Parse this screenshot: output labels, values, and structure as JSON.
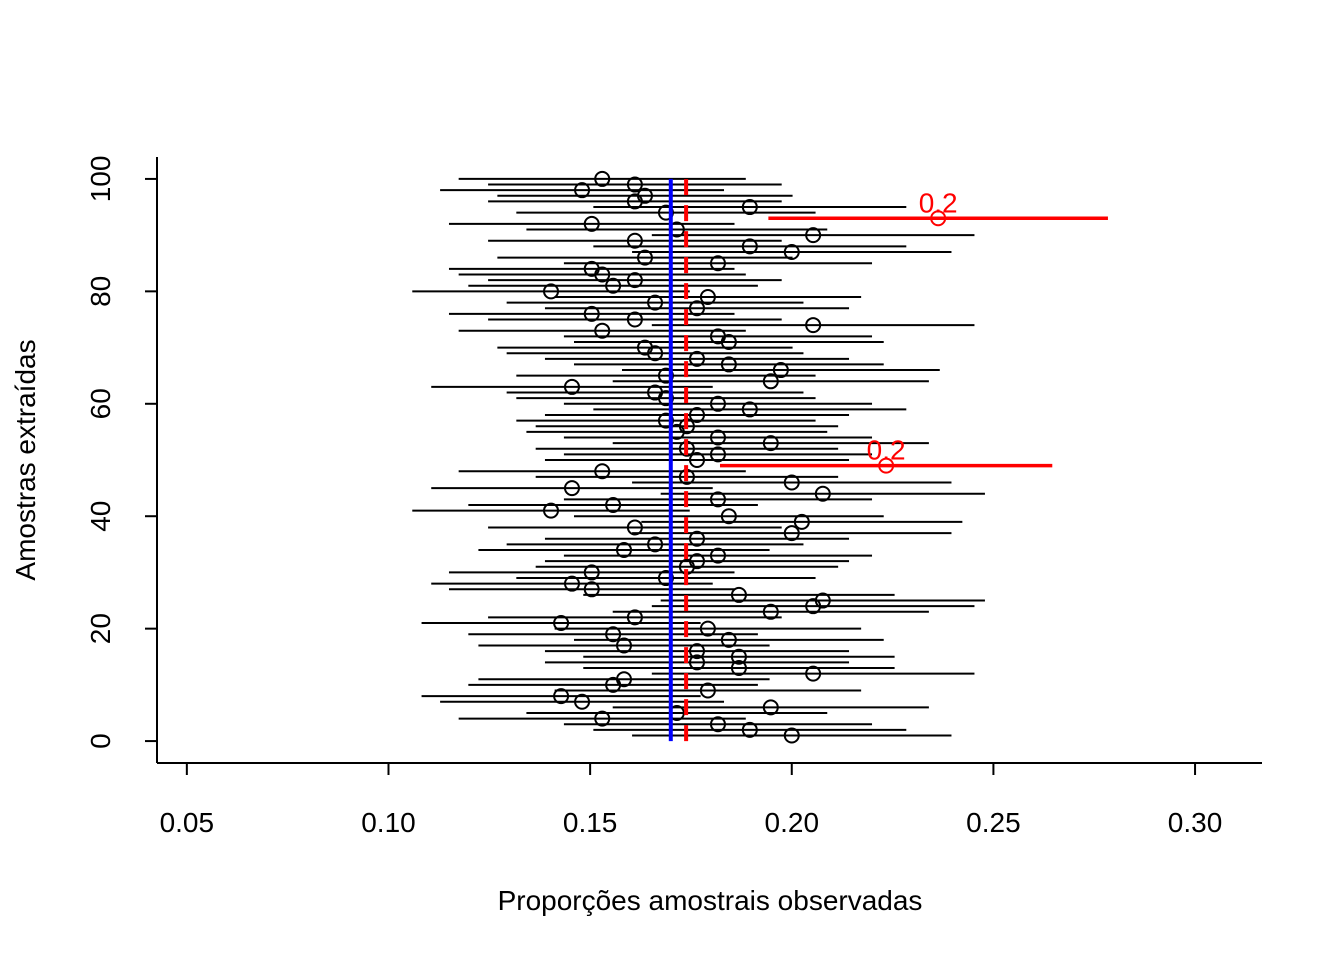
{
  "chart_data": {
    "type": "scatter",
    "xlabel": "Proporções amostrais observadas",
    "ylabel": "Amostras extraídas",
    "color": "black",
    "highlight_color": "red",
    "x": [
      0.2,
      0.1896,
      0.1817,
      0.153,
      0.1715,
      0.1948,
      0.148,
      0.1428,
      0.1792,
      0.1557,
      0.1584,
      0.2053,
      0.1869,
      0.1765,
      0.1869,
      0.1765,
      0.1584,
      0.1844,
      0.1557,
      0.1792,
      0.1428,
      0.1611,
      0.1948,
      0.2053,
      0.2077,
      0.1869,
      0.1504,
      0.1455,
      0.1688,
      0.1504,
      0.174,
      0.1765,
      0.1817,
      0.1584,
      0.1661,
      0.1765,
      0.2,
      0.1611,
      0.2025,
      0.1844,
      0.1403,
      0.1557,
      0.1817,
      0.2077,
      0.1455,
      0.2,
      0.174,
      0.153,
      0.2234,
      0.1765,
      0.1817,
      0.174,
      0.1948,
      0.1817,
      0.1715,
      0.174,
      0.1688,
      0.1765,
      0.1896,
      0.1817,
      0.1688,
      0.1661,
      0.1455,
      0.1948,
      0.1688,
      0.1973,
      0.1844,
      0.1765,
      0.1661,
      0.1636,
      0.1844,
      0.1817,
      0.153,
      0.2053,
      0.1611,
      0.1504,
      0.1765,
      0.1661,
      0.1792,
      0.1403,
      0.1557,
      0.1611,
      0.153,
      0.1504,
      0.1817,
      0.1636,
      0.2,
      0.1896,
      0.1611,
      0.2053,
      0.1715,
      0.1504,
      0.2363,
      0.1688,
      0.1896,
      0.1611,
      0.1636,
      0.148,
      0.1611,
      0.153
    ],
    "y": [
      1,
      2,
      3,
      4,
      5,
      6,
      7,
      8,
      9,
      10,
      11,
      12,
      13,
      14,
      15,
      16,
      17,
      18,
      19,
      20,
      21,
      22,
      23,
      24,
      25,
      26,
      27,
      28,
      29,
      30,
      31,
      32,
      33,
      34,
      35,
      36,
      37,
      38,
      39,
      40,
      41,
      42,
      43,
      44,
      45,
      46,
      47,
      48,
      49,
      50,
      51,
      52,
      53,
      54,
      55,
      56,
      57,
      58,
      59,
      60,
      61,
      62,
      63,
      64,
      65,
      66,
      67,
      68,
      69,
      70,
      71,
      72,
      73,
      74,
      75,
      76,
      77,
      78,
      79,
      80,
      81,
      82,
      83,
      84,
      85,
      86,
      87,
      88,
      89,
      90,
      91,
      92,
      93,
      94,
      95,
      96,
      97,
      98,
      99,
      100
    ],
    "lower": [
      0.1604,
      0.1508,
      0.1435,
      0.1174,
      0.1342,
      0.1556,
      0.1128,
      0.1082,
      0.1412,
      0.1198,
      0.1223,
      0.1653,
      0.1483,
      0.1388,
      0.1483,
      0.1388,
      0.1223,
      0.146,
      0.1198,
      0.1412,
      0.1082,
      0.1247,
      0.1556,
      0.1653,
      0.1675,
      0.1483,
      0.115,
      0.1106,
      0.1317,
      0.115,
      0.1365,
      0.1388,
      0.1435,
      0.1223,
      0.1293,
      0.1388,
      0.1604,
      0.1247,
      0.1627,
      0.146,
      0.1059,
      0.1198,
      0.1435,
      0.1675,
      0.1106,
      0.1604,
      0.1365,
      0.1174,
      0.1822,
      0.1388,
      0.1435,
      0.1365,
      0.1556,
      0.1435,
      0.1342,
      0.1365,
      0.1317,
      0.1388,
      0.1508,
      0.1435,
      0.1317,
      0.1293,
      0.1106,
      0.1556,
      0.1317,
      0.1579,
      0.146,
      0.1388,
      0.1293,
      0.127,
      0.146,
      0.1435,
      0.1174,
      0.1653,
      0.1247,
      0.115,
      0.1388,
      0.1293,
      0.1412,
      0.1059,
      0.1198,
      0.1247,
      0.1174,
      0.115,
      0.1435,
      0.127,
      0.1604,
      0.1508,
      0.1247,
      0.1653,
      0.1342,
      0.115,
      0.1942,
      0.1317,
      0.1508,
      0.1247,
      0.127,
      0.1128,
      0.1247,
      0.1174
    ],
    "upper": [
      0.2396,
      0.2284,
      0.2199,
      0.1886,
      0.2088,
      0.234,
      0.1832,
      0.1774,
      0.2172,
      0.1916,
      0.1945,
      0.2453,
      0.2255,
      0.2142,
      0.2255,
      0.2142,
      0.1945,
      0.2228,
      0.1916,
      0.2172,
      0.1774,
      0.1975,
      0.234,
      0.2453,
      0.2479,
      0.2255,
      0.1858,
      0.1804,
      0.2059,
      0.1858,
      0.2115,
      0.2142,
      0.2199,
      0.1945,
      0.2029,
      0.2142,
      0.2396,
      0.1975,
      0.2423,
      0.2228,
      0.1747,
      0.1916,
      0.2199,
      0.2479,
      0.1804,
      0.2396,
      0.2115,
      0.1886,
      0.2646,
      0.2142,
      0.2199,
      0.2115,
      0.234,
      0.2199,
      0.2088,
      0.2115,
      0.2059,
      0.2142,
      0.2284,
      0.2199,
      0.2059,
      0.2029,
      0.1804,
      0.234,
      0.2059,
      0.2367,
      0.2228,
      0.2142,
      0.2029,
      0.2002,
      0.2228,
      0.2199,
      0.1886,
      0.2453,
      0.1975,
      0.1858,
      0.2142,
      0.2029,
      0.2172,
      0.1747,
      0.1916,
      0.1975,
      0.1886,
      0.1858,
      0.2199,
      0.2002,
      0.2396,
      0.2284,
      0.1975,
      0.2453,
      0.2088,
      0.1858,
      0.2784,
      0.2059,
      0.2284,
      0.1975,
      0.2002,
      0.1832,
      0.1975,
      0.1886
    ],
    "annotations": [
      {
        "text": "0.2",
        "x": 0.2234,
        "y": 49
      },
      {
        "text": "0.2",
        "x": 0.2363,
        "y": 93
      }
    ],
    "reference_lines": [
      {
        "value": 0.17,
        "color": "blue",
        "style": "solid"
      },
      {
        "value": 0.1738,
        "color": "red",
        "style": "dashed"
      }
    ],
    "xlim": [
      0.0426,
      0.3166
    ],
    "ylim": [
      -3.9,
      103.9
    ],
    "xticks": [
      0.05,
      {
        "value": 0.1,
        "label": "0.10"
      },
      0.15,
      {
        "value": 0.2,
        "label": "0.20"
      },
      0.25,
      {
        "value": 0.3,
        "label": "0.30"
      }
    ],
    "yticks": [
      0,
      20,
      40,
      60,
      80,
      100
    ]
  }
}
